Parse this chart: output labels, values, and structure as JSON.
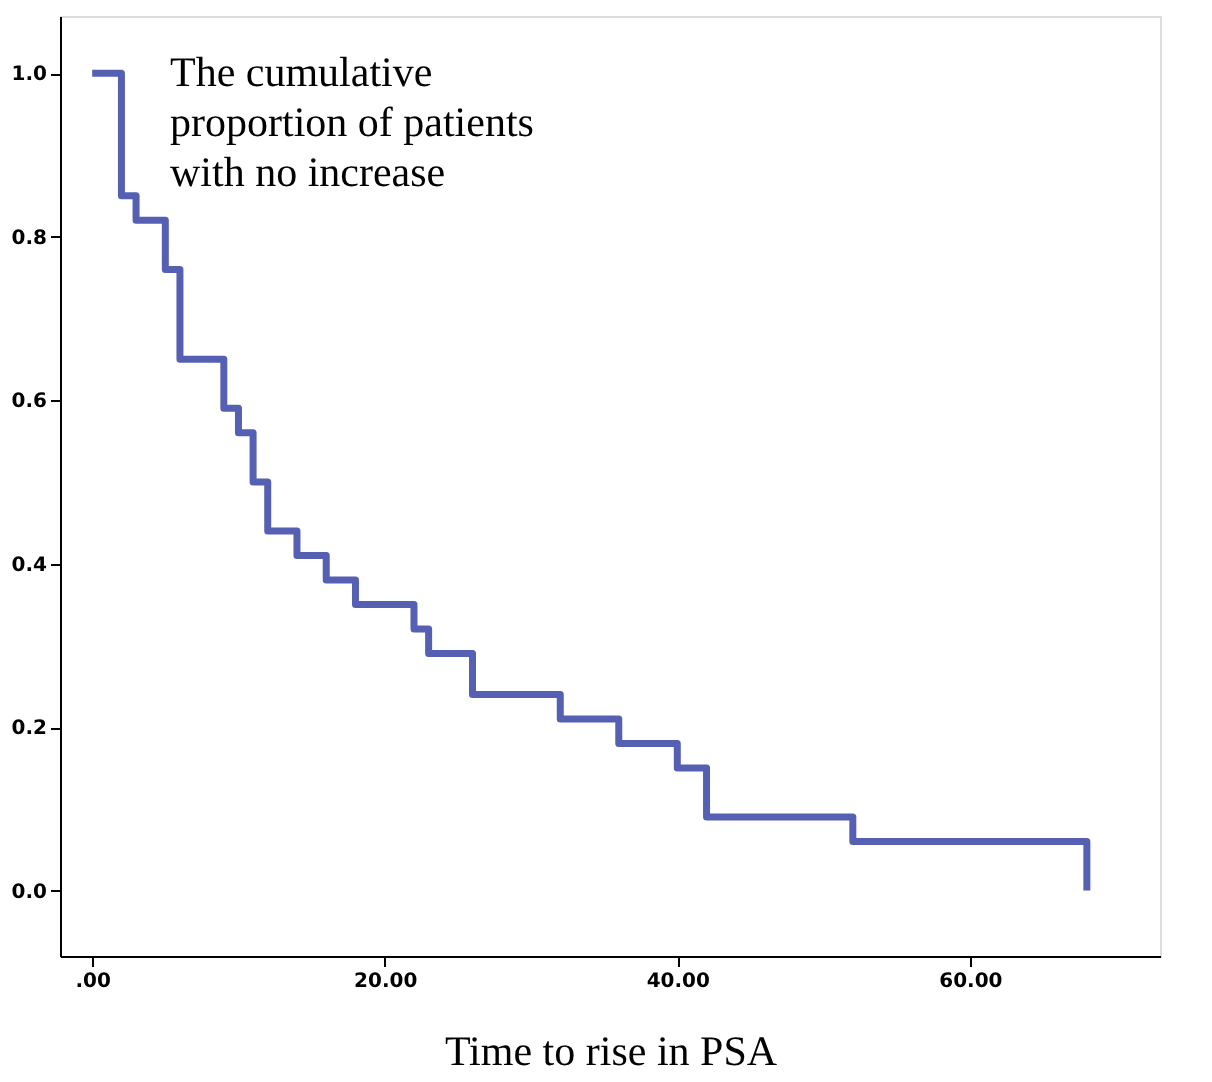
{
  "chart_data": {
    "type": "step",
    "xlabel": "Time to rise in PSA",
    "annotations": [
      "The cumulative\nproportion of patients\nwith no increase"
    ],
    "x": [
      0,
      2,
      3,
      5,
      6,
      9,
      10,
      11,
      12,
      14,
      16,
      18,
      22,
      23,
      26,
      32,
      36,
      40,
      42,
      52,
      68
    ],
    "series": [
      {
        "color": "#5660b3",
        "values": [
          1.0,
          0.85,
          0.82,
          0.76,
          0.65,
          0.59,
          0.56,
          0.5,
          0.44,
          0.41,
          0.38,
          0.35,
          0.32,
          0.29,
          0.24,
          0.21,
          0.18,
          0.15,
          0.09,
          0.06,
          0.0
        ]
      }
    ],
    "xlim": [
      -2.2,
      73
    ],
    "ylim": [
      -0.08,
      1.07
    ],
    "xticks": [
      {
        "value": 0,
        "label": ".00"
      },
      {
        "value": 20,
        "label": "20.00"
      },
      {
        "value": 40,
        "label": "40.00"
      },
      {
        "value": 60,
        "label": "60.00"
      }
    ],
    "yticks": [
      {
        "value": 0,
        "label": "0.0"
      },
      {
        "value": 0.2,
        "label": "0.2"
      },
      {
        "value": 0.4,
        "label": "0.4"
      },
      {
        "value": 0.6,
        "label": "0.6"
      },
      {
        "value": 0.8,
        "label": "0.8"
      },
      {
        "value": 1.0,
        "label": "1.0"
      }
    ],
    "grid": false,
    "legend": false
  }
}
